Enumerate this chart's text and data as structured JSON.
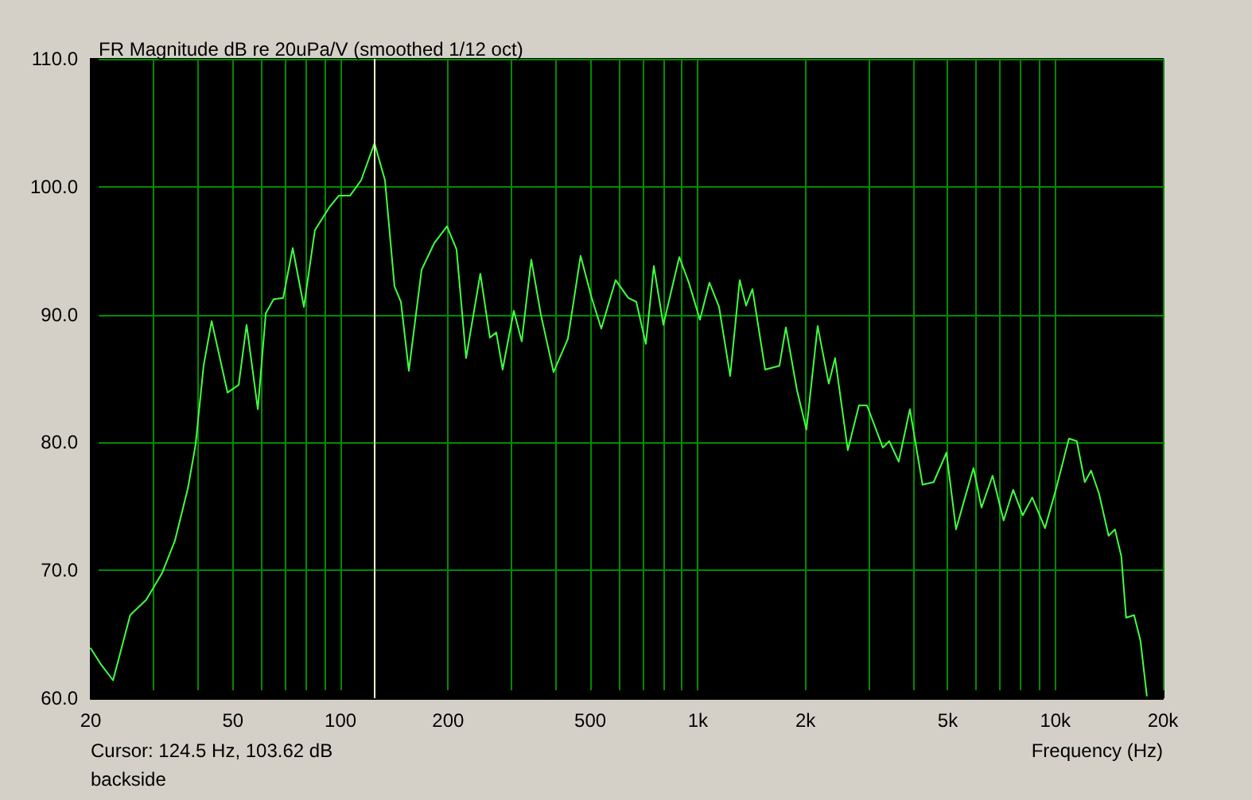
{
  "chart_data": {
    "type": "line",
    "title": "FR Magnitude dB re 20uPa/V (smoothed 1/12 oct)",
    "xlabel": "Frequency (Hz)",
    "annotations": [
      "Cursor: 124.5 Hz, 103.62 dB",
      "backside"
    ],
    "log": "x",
    "grid": true,
    "marker": "none",
    "line_style": "solid",
    "xlim": [
      20,
      20000
    ],
    "xticks": [
      20,
      {
        "value": 30,
        "label": null
      },
      {
        "value": 40,
        "label": null
      },
      50,
      {
        "value": 60,
        "label": null
      },
      {
        "value": 70,
        "label": null
      },
      {
        "value": 80,
        "label": null
      },
      {
        "value": 90,
        "label": null
      },
      100,
      200,
      {
        "value": 300,
        "label": null
      },
      {
        "value": 400,
        "label": null
      },
      500,
      {
        "value": 600,
        "label": null
      },
      {
        "value": 700,
        "label": null
      },
      {
        "value": 800,
        "label": null
      },
      {
        "value": 900,
        "label": null
      },
      {
        "value": 1000,
        "label": "1k"
      },
      {
        "value": 2000,
        "label": "2k"
      },
      {
        "value": 3000,
        "label": null
      },
      {
        "value": 4000,
        "label": null
      },
      {
        "value": 5000,
        "label": "5k"
      },
      {
        "value": 6000,
        "label": null
      },
      {
        "value": 7000,
        "label": null
      },
      {
        "value": 8000,
        "label": null
      },
      {
        "value": 9000,
        "label": null
      },
      {
        "value": 10000,
        "label": "10k"
      },
      {
        "value": 20000,
        "label": "20k"
      }
    ],
    "ylim": [
      60,
      110
    ],
    "yticks": [
      {
        "value": 60,
        "label": "60.0"
      },
      {
        "value": 70,
        "label": "70.0"
      },
      {
        "value": 80,
        "label": "80.0"
      },
      {
        "value": 90,
        "label": "90.0"
      },
      {
        "value": 100,
        "label": "100.0"
      },
      {
        "value": 110,
        "label": "110.0"
      }
    ],
    "ref_lines": [
      {
        "axis": "x",
        "value": 124.5,
        "color": "#ffffc8"
      }
    ],
    "x": [
      20,
      21.3,
      23.1,
      25.8,
      28.6,
      31.7,
      34.4,
      37.4,
      39.3,
      41.4,
      43.6,
      48.3,
      51.9,
      54.6,
      58.7,
      61.8,
      65,
      69.1,
      73.5,
      79,
      84.8,
      93.1,
      98.9,
      106.3,
      114.2,
      124.5,
      133.2,
      141.6,
      147.6,
      155.3,
      168.6,
      183,
      198.6,
      211.2,
      224.6,
      246.2,
      261.8,
      272.8,
      284.2,
      305.4,
      321.4,
      341.8,
      363.6,
      394.6,
      432.7,
      469.6,
      504.6,
      536.6,
      588.4,
      638.6,
      672.3,
      715.1,
      752.6,
      800.4,
      886.9,
      943,
      1013,
      1077,
      1146,
      1231,
      1309,
      1364,
      1421,
      1542,
      1691,
      1762,
      1893,
      2012,
      2163,
      2323,
      2420,
      2627,
      2822,
      2971,
      3292,
      3430,
      3646,
      3918,
      4251,
      4568,
      4958,
      5275,
      5551,
      5903,
      6214,
      6675,
      7167,
      7622,
      8105,
      8620,
      9357,
      10056,
      10916,
      11484,
      12090,
      12594,
      13252,
      14095,
      14684,
      15298,
      15778,
      16609,
      17307,
      18031
    ],
    "series": [
      {
        "color": "#40ff40",
        "values": [
          63.9,
          62.7,
          61.4,
          66.5,
          67.7,
          69.8,
          72.3,
          76.4,
          79.8,
          86.0,
          89.5,
          83.9,
          84.5,
          89.2,
          82.6,
          90.1,
          91.2,
          91.3,
          95.2,
          90.6,
          96.6,
          98.4,
          99.3,
          99.3,
          100.5,
          103.4,
          100.5,
          92.2,
          91.0,
          85.6,
          93.5,
          95.6,
          96.9,
          95.1,
          86.6,
          93.2,
          88.2,
          88.6,
          85.7,
          90.3,
          87.9,
          94.3,
          90.0,
          85.5,
          88.1,
          94.6,
          91.3,
          88.9,
          92.7,
          91.3,
          91.0,
          87.7,
          93.8,
          89.2,
          94.5,
          92.5,
          89.6,
          92.5,
          90.6,
          85.2,
          92.7,
          90.7,
          92.0,
          85.7,
          86.0,
          89.0,
          84.1,
          81.0,
          89.1,
          84.6,
          86.6,
          79.4,
          82.9,
          82.9,
          79.6,
          80.1,
          78.5,
          82.6,
          76.7,
          76.9,
          79.2,
          73.2,
          75.4,
          78.0,
          74.9,
          77.4,
          73.9,
          76.3,
          74.3,
          75.7,
          73.3,
          76.4,
          80.3,
          80.1,
          76.9,
          77.8,
          76.0,
          72.7,
          73.2,
          71.1,
          66.3,
          66.5,
          64.5,
          60.2
        ]
      }
    ]
  }
}
